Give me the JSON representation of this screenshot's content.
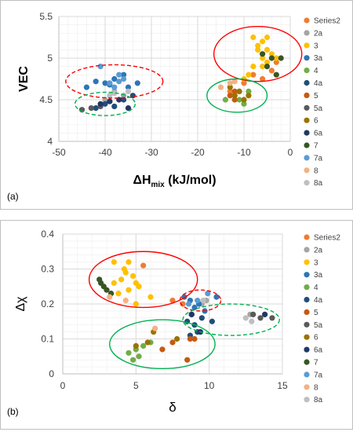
{
  "legend_items": [
    {
      "label": "Series2",
      "color": "#ED7D31"
    },
    {
      "label": "2a",
      "color": "#A5A5A5"
    },
    {
      "label": "3",
      "color": "#FFC000"
    },
    {
      "label": "3a",
      "color": "#2E75B6"
    },
    {
      "label": "4",
      "color": "#70AD47"
    },
    {
      "label": "4a",
      "color": "#1F4E79"
    },
    {
      "label": "5",
      "color": "#C55A11"
    },
    {
      "label": "5a",
      "color": "#595959"
    },
    {
      "label": "6",
      "color": "#997300"
    },
    {
      "label": "6a",
      "color": "#203864"
    },
    {
      "label": "7",
      "color": "#375623"
    },
    {
      "label": "7a",
      "color": "#5B9BD5"
    },
    {
      "label": "8",
      "color": "#F4B183"
    },
    {
      "label": "8a",
      "color": "#BFBFBF"
    }
  ],
  "chart_data": [
    {
      "type": "scatter",
      "panel_label": "(a)",
      "xlabel_main": "ΔH",
      "xlabel_sub": "mix",
      "xlabel_rest": " (kJ/mol)",
      "ylabel": "VEC",
      "xlim": [
        -50,
        0
      ],
      "ylim": [
        4,
        5.5
      ],
      "x_ticks": [
        -50,
        -40,
        -30,
        -20,
        -10,
        0
      ],
      "y_ticks": [
        4,
        4.5,
        5,
        5.5
      ],
      "y_tick_labels": [
        "4",
        "4.5",
        "5",
        "5.5"
      ],
      "grid": true,
      "legend_placement": "right",
      "series": [
        {
          "name": "Series2",
          "points": [
            [
              -8,
              4.8
            ],
            [
              -6,
              4.75
            ],
            [
              -4,
              4.85
            ],
            [
              -3,
              4.95
            ],
            [
              -13,
              4.6
            ],
            [
              -10,
              4.7
            ]
          ]
        },
        {
          "name": "2a",
          "points": [
            [
              -38,
              4.6
            ],
            [
              -36,
              4.55
            ],
            [
              -40,
              4.5
            ]
          ]
        },
        {
          "name": "3",
          "points": [
            [
              -8,
              5.25
            ],
            [
              -6,
              5.2
            ],
            [
              -5,
              5.1
            ],
            [
              -7,
              5.15
            ],
            [
              -4,
              5.05
            ],
            [
              -6,
              5.0
            ],
            [
              -5,
              4.95
            ],
            [
              -8,
              4.9
            ],
            [
              -7,
              5.1
            ],
            [
              -3,
              5.0
            ],
            [
              -9,
              4.8
            ],
            [
              -6,
              4.9
            ],
            [
              -5,
              5.25
            ],
            [
              -10,
              4.75
            ]
          ]
        },
        {
          "name": "3a",
          "points": [
            [
              -42,
              4.72
            ],
            [
              -40,
              4.7
            ],
            [
              -38,
              4.75
            ],
            [
              -36,
              4.8
            ],
            [
              -35,
              4.65
            ],
            [
              -33,
              4.7
            ],
            [
              -44,
              4.65
            ],
            [
              -39,
              4.68
            ]
          ]
        },
        {
          "name": "4",
          "points": [
            [
              -14,
              4.5
            ],
            [
              -12,
              4.55
            ],
            [
              -11,
              4.5
            ],
            [
              -10,
              4.45
            ],
            [
              -9,
              4.6
            ]
          ]
        },
        {
          "name": "4a",
          "points": [
            [
              -42,
              4.4
            ],
            [
              -40,
              4.45
            ],
            [
              -38,
              4.42
            ],
            [
              -36,
              4.5
            ],
            [
              -34,
              4.55
            ]
          ]
        },
        {
          "name": "5",
          "points": [
            [
              -13,
              4.55
            ],
            [
              -12,
              4.6
            ],
            [
              -11,
              4.6
            ],
            [
              -12,
              4.5
            ]
          ]
        },
        {
          "name": "5a",
          "points": [
            [
              -45,
              4.38
            ],
            [
              -43,
              4.4
            ],
            [
              -41,
              4.42
            ]
          ]
        },
        {
          "name": "6",
          "points": [
            [
              -12,
              4.55
            ],
            [
              -11,
              4.6
            ],
            [
              -10,
              4.5
            ],
            [
              -13,
              4.65
            ],
            [
              -9,
              4.55
            ]
          ]
        },
        {
          "name": "6a",
          "points": [
            [
              -41,
              4.45
            ],
            [
              -39,
              4.48
            ],
            [
              -37,
              4.5
            ],
            [
              -35,
              4.4
            ]
          ]
        },
        {
          "name": "7",
          "points": [
            [
              -5,
              4.9
            ],
            [
              -4,
              5.0
            ],
            [
              -6,
              5.05
            ],
            [
              -3,
              4.8
            ],
            [
              -2,
              5.0
            ]
          ]
        },
        {
          "name": "7a",
          "points": [
            [
              -41,
              4.9
            ],
            [
              -37,
              4.8
            ],
            [
              -36,
              4.75
            ],
            [
              -39,
              4.7
            ],
            [
              -38,
              4.65
            ],
            [
              -37,
              4.72
            ]
          ]
        },
        {
          "name": "8",
          "points": [
            [
              -15,
              4.65
            ],
            [
              -13,
              4.7
            ],
            [
              -12,
              4.72
            ]
          ]
        },
        {
          "name": "8a",
          "points": [
            [
              -39,
              4.55
            ],
            [
              -38,
              4.58
            ],
            [
              -35,
              4.6
            ]
          ]
        }
      ],
      "ellipses": [
        {
          "color": "#FF0000",
          "style": "solid",
          "cx": -7,
          "cy": 5.05,
          "rx": 9.5,
          "ry": 0.33
        },
        {
          "color": "#FF0000",
          "style": "dashed",
          "cx": -38,
          "cy": 4.72,
          "rx": 10.5,
          "ry": 0.2
        },
        {
          "color": "#00B050",
          "style": "solid",
          "cx": -11.5,
          "cy": 4.55,
          "rx": 6.5,
          "ry": 0.2
        },
        {
          "color": "#00B050",
          "style": "dashed",
          "cx": -40,
          "cy": 4.45,
          "rx": 6.5,
          "ry": 0.14
        }
      ]
    },
    {
      "type": "scatter",
      "panel_label": "(b)",
      "xlabel": "δ",
      "ylabel": "Δχ",
      "xlim": [
        0,
        15
      ],
      "ylim": [
        0,
        0.4
      ],
      "x_ticks": [
        0,
        5,
        10,
        15
      ],
      "y_ticks": [
        0,
        0.1,
        0.2,
        0.3,
        0.4
      ],
      "y_tick_labels": [
        "0",
        "0.1",
        "0.2",
        "0.3",
        "0.4"
      ],
      "grid": true,
      "legend_placement": "right",
      "series": [
        {
          "name": "Series2",
          "points": [
            [
              5.5,
              0.31
            ],
            [
              7.5,
              0.21
            ],
            [
              8.2,
              0.2
            ]
          ]
        },
        {
          "name": "2a",
          "points": [
            [
              9.5,
              0.2
            ],
            [
              9.8,
              0.21
            ],
            [
              12.8,
              0.17
            ]
          ]
        },
        {
          "name": "3",
          "points": [
            [
              3.5,
              0.32
            ],
            [
              4.2,
              0.3
            ],
            [
              4.5,
              0.32
            ],
            [
              4.8,
              0.28
            ],
            [
              5.0,
              0.26
            ],
            [
              5.2,
              0.25
            ],
            [
              4.0,
              0.27
            ],
            [
              4.5,
              0.24
            ],
            [
              3.8,
              0.23
            ],
            [
              5.0,
              0.2
            ],
            [
              6.0,
              0.22
            ],
            [
              4.3,
              0.29
            ],
            [
              3.5,
              0.26
            ]
          ]
        },
        {
          "name": "3a",
          "points": [
            [
              8.3,
              0.22
            ],
            [
              8.7,
              0.21
            ],
            [
              9.0,
              0.19
            ],
            [
              9.3,
              0.2
            ],
            [
              10.5,
              0.22
            ],
            [
              9.7,
              0.18
            ]
          ]
        },
        {
          "name": "4",
          "points": [
            [
              4.5,
              0.06
            ],
            [
              5.0,
              0.07
            ],
            [
              5.5,
              0.08
            ],
            [
              6.0,
              0.09
            ],
            [
              5.2,
              0.05
            ],
            [
              4.8,
              0.04
            ]
          ]
        },
        {
          "name": "4a",
          "points": [
            [
              8.5,
              0.15
            ],
            [
              9.0,
              0.14
            ],
            [
              8.8,
              0.17
            ],
            [
              9.5,
              0.16
            ],
            [
              10.2,
              0.15
            ],
            [
              8.7,
              0.11
            ],
            [
              9.2,
              0.12
            ]
          ]
        },
        {
          "name": "5",
          "points": [
            [
              8.7,
              0.1
            ],
            [
              9.0,
              0.1
            ],
            [
              8.5,
              0.04
            ],
            [
              6.8,
              0.07
            ],
            [
              7.5,
              0.09
            ]
          ]
        },
        {
          "name": "5a",
          "points": [
            [
              13.0,
              0.17
            ],
            [
              13.5,
              0.16
            ],
            [
              14.3,
              0.16
            ]
          ]
        },
        {
          "name": "6",
          "points": [
            [
              5.0,
              0.08
            ],
            [
              5.8,
              0.09
            ],
            [
              6.2,
              0.12
            ],
            [
              7.8,
              0.1
            ]
          ]
        },
        {
          "name": "6a",
          "points": [
            [
              8.8,
              0.17
            ],
            [
              9.4,
              0.12
            ],
            [
              13.8,
              0.17
            ]
          ]
        },
        {
          "name": "7",
          "points": [
            [
              2.5,
              0.27
            ],
            [
              2.8,
              0.25
            ],
            [
              3.0,
              0.24
            ],
            [
              2.6,
              0.26
            ],
            [
              3.3,
              0.23
            ]
          ]
        },
        {
          "name": "7a",
          "points": [
            [
              8.6,
              0.2
            ],
            [
              9.2,
              0.21
            ],
            [
              9.9,
              0.23
            ]
          ]
        },
        {
          "name": "8",
          "points": [
            [
              3.2,
              0.22
            ],
            [
              4.3,
              0.21
            ],
            [
              6.3,
              0.13
            ]
          ]
        },
        {
          "name": "8a",
          "points": [
            [
              12.5,
              0.16
            ],
            [
              12.9,
              0.15
            ],
            [
              9.6,
              0.21
            ]
          ]
        }
      ],
      "ellipses": [
        {
          "color": "#FF0000",
          "style": "solid",
          "cx": 5.5,
          "cy": 0.27,
          "rx": 3.7,
          "ry": 0.08
        },
        {
          "color": "#FF0000",
          "style": "dashed",
          "cx": 9.4,
          "cy": 0.21,
          "rx": 1.4,
          "ry": 0.03
        },
        {
          "color": "#00B050",
          "style": "solid",
          "cx": 6.8,
          "cy": 0.085,
          "rx": 3.6,
          "ry": 0.07
        },
        {
          "color": "#00B050",
          "style": "dashed",
          "cx": 11.5,
          "cy": 0.155,
          "rx": 3.3,
          "ry": 0.045
        }
      ]
    }
  ]
}
